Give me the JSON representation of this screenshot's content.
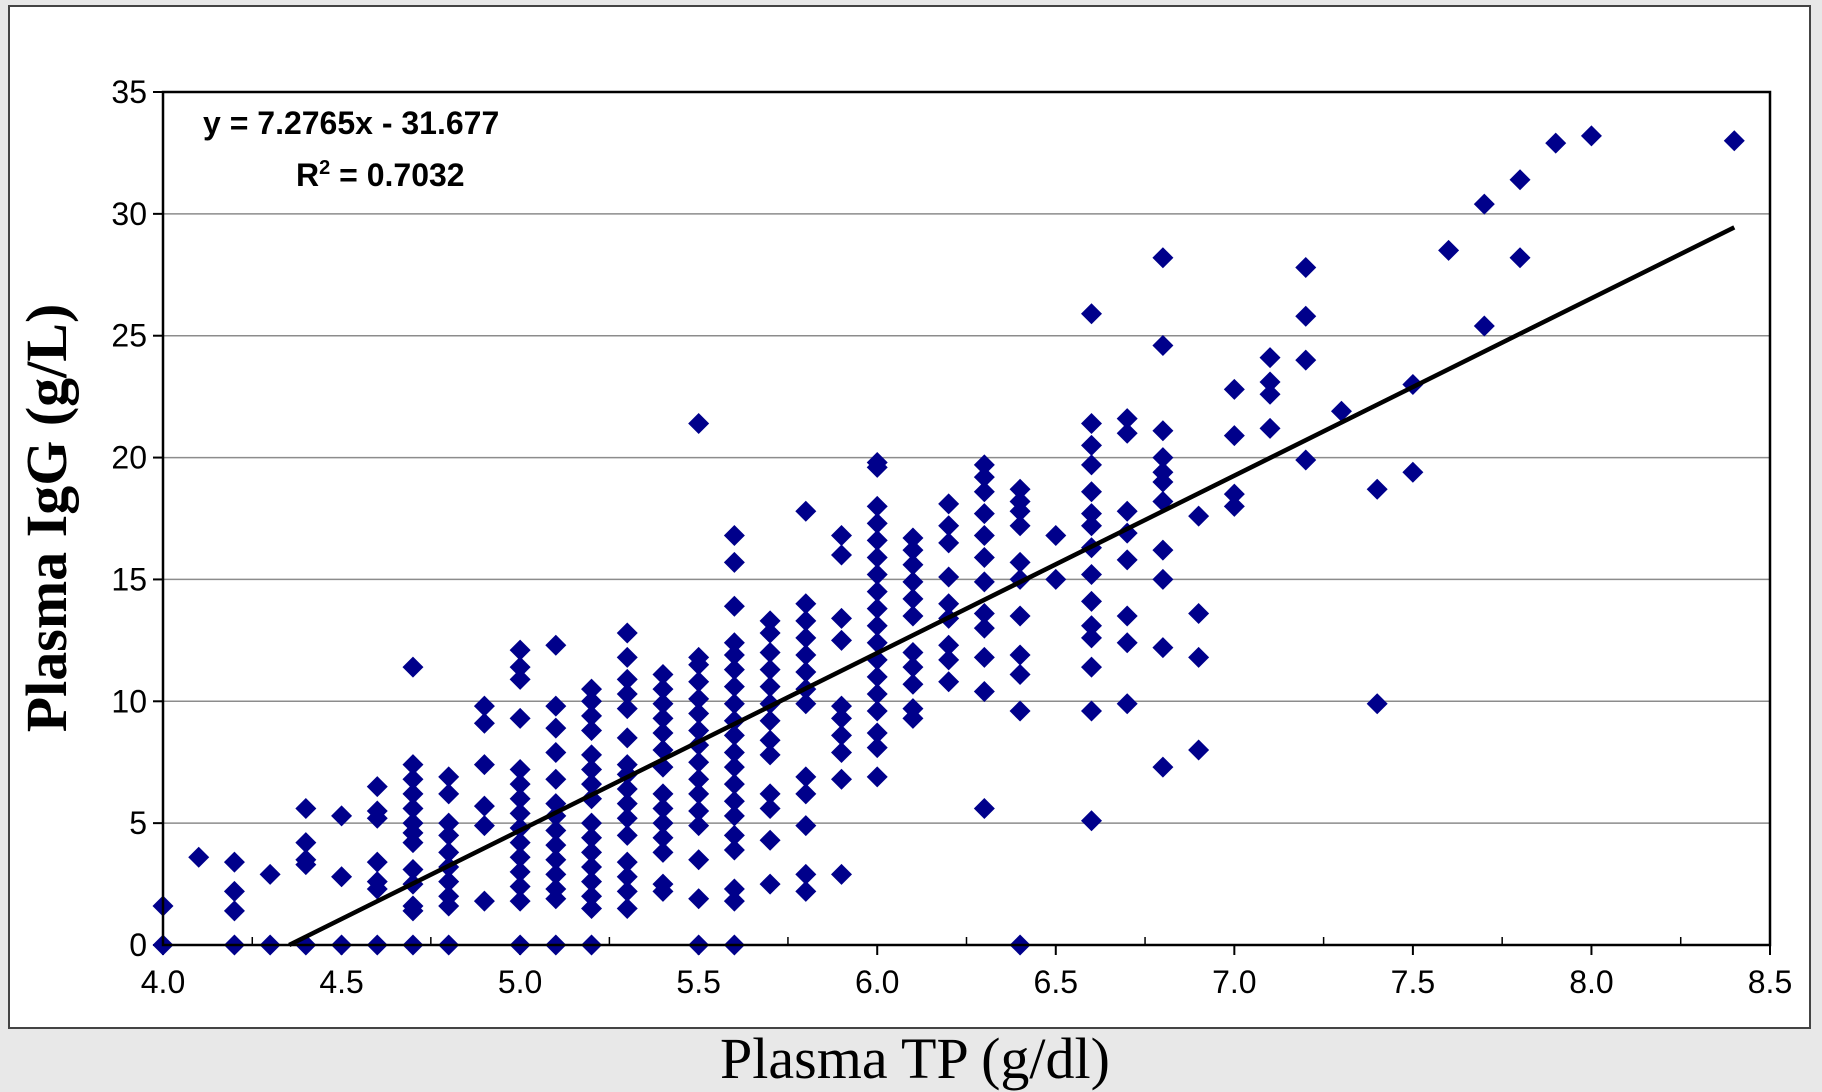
{
  "chart_data": {
    "type": "scatter",
    "xlabel": "Plasma TP (g/dl)",
    "ylabel": "Plasma IgG (g/L)",
    "equation": "y = 7.2765x - 31.677",
    "r_squared": {
      "symbol": "R",
      "superscript": "2",
      "text": " = 0.7032"
    },
    "xlim": [
      4.0,
      8.5
    ],
    "ylim": [
      0,
      35
    ],
    "xticks": [
      {
        "value": 4.0,
        "label": "4.0"
      },
      4.5,
      {
        "value": 5.0,
        "label": "5.0"
      },
      5.5,
      {
        "value": 6.0,
        "label": "6.0"
      },
      6.5,
      {
        "value": 7.0,
        "label": "7.0"
      },
      7.5,
      {
        "value": 8.0,
        "label": "8.0"
      },
      8.5
    ],
    "xminorticks": [
      4.25,
      4.75,
      5.25,
      5.75,
      6.25,
      6.75,
      7.25,
      7.75,
      8.25
    ],
    "yticks": [
      0,
      5,
      10,
      15,
      20,
      25,
      30,
      35
    ],
    "grid": true,
    "series": [
      {
        "color": "#00008b",
        "x": [
          4.0,
          4.0,
          4.1,
          4.2,
          4.2,
          4.2,
          4.2,
          4.3,
          4.3,
          4.4,
          4.4,
          4.4,
          4.4,
          4.4,
          4.5,
          4.5,
          4.5,
          4.6,
          4.6,
          4.6,
          4.6,
          4.6,
          4.6,
          4.6,
          4.7,
          4.7,
          4.7,
          4.7,
          4.7,
          4.7,
          4.7,
          4.7,
          4.7,
          4.7,
          4.7,
          4.7,
          4.7,
          4.8,
          4.8,
          4.8,
          4.8,
          4.8,
          4.8,
          4.8,
          4.8,
          4.8,
          4.8,
          4.9,
          4.9,
          4.9,
          4.9,
          4.9,
          4.9,
          5.0,
          5.0,
          5.0,
          5.0,
          5.0,
          5.0,
          5.0,
          5.0,
          5.0,
          5.0,
          5.0,
          5.0,
          5.0,
          5.0,
          5.0,
          5.1,
          5.1,
          5.1,
          5.1,
          5.1,
          5.1,
          5.1,
          5.1,
          5.1,
          5.1,
          5.1,
          5.1,
          5.1,
          5.1,
          5.2,
          5.2,
          5.2,
          5.2,
          5.2,
          5.2,
          5.2,
          5.2,
          5.2,
          5.2,
          5.2,
          5.2,
          5.2,
          5.2,
          5.2,
          5.2,
          5.3,
          5.3,
          5.3,
          5.3,
          5.3,
          5.3,
          5.3,
          5.3,
          5.3,
          5.3,
          5.3,
          5.3,
          5.3,
          5.3,
          5.3,
          5.3,
          5.4,
          5.4,
          5.4,
          5.4,
          5.4,
          5.4,
          5.4,
          5.4,
          5.4,
          5.4,
          5.4,
          5.4,
          5.4,
          5.4,
          5.5,
          5.5,
          5.5,
          5.5,
          5.5,
          5.5,
          5.5,
          5.5,
          5.5,
          5.5,
          5.5,
          5.5,
          5.5,
          5.5,
          5.5,
          5.5,
          5.6,
          5.6,
          5.6,
          5.6,
          5.6,
          5.6,
          5.6,
          5.6,
          5.6,
          5.6,
          5.6,
          5.6,
          5.6,
          5.6,
          5.6,
          5.6,
          5.6,
          5.6,
          5.6,
          5.6,
          5.7,
          5.7,
          5.7,
          5.7,
          5.7,
          5.7,
          5.7,
          5.7,
          5.7,
          5.7,
          5.7,
          5.7,
          5.7,
          5.8,
          5.8,
          5.8,
          5.8,
          5.8,
          5.8,
          5.8,
          5.8,
          5.8,
          5.8,
          5.8,
          5.8,
          5.8,
          5.9,
          5.9,
          5.9,
          5.9,
          5.9,
          5.9,
          5.9,
          5.9,
          5.9,
          5.9,
          6.0,
          6.0,
          6.0,
          6.0,
          6.0,
          6.0,
          6.0,
          6.0,
          6.0,
          6.0,
          6.0,
          6.0,
          6.0,
          6.0,
          6.0,
          6.0,
          6.0,
          6.0,
          6.1,
          6.1,
          6.1,
          6.1,
          6.1,
          6.1,
          6.1,
          6.1,
          6.1,
          6.1,
          6.1,
          6.2,
          6.2,
          6.2,
          6.2,
          6.2,
          6.2,
          6.2,
          6.2,
          6.2,
          6.3,
          6.3,
          6.3,
          6.3,
          6.3,
          6.3,
          6.3,
          6.3,
          6.3,
          6.3,
          6.3,
          6.3,
          6.4,
          6.4,
          6.4,
          6.4,
          6.4,
          6.4,
          6.4,
          6.4,
          6.4,
          6.4,
          6.4,
          6.5,
          6.5,
          6.6,
          6.6,
          6.6,
          6.6,
          6.6,
          6.6,
          6.6,
          6.6,
          6.6,
          6.6,
          6.6,
          6.6,
          6.6,
          6.6,
          6.6,
          6.7,
          6.7,
          6.7,
          6.7,
          6.7,
          6.7,
          6.7,
          6.7,
          6.8,
          6.8,
          6.8,
          6.8,
          6.8,
          6.8,
          6.8,
          6.8,
          6.8,
          6.8,
          6.8,
          6.9,
          6.9,
          6.9,
          6.9,
          7.0,
          7.0,
          7.0,
          7.0,
          7.1,
          7.1,
          7.1,
          7.1,
          7.2,
          7.2,
          7.2,
          7.2,
          7.3,
          7.4,
          7.4,
          7.5,
          7.5,
          7.6,
          7.7,
          7.7,
          7.8,
          7.8,
          7.9,
          8.0,
          8.4
        ],
        "values": [
          0,
          1.6,
          3.6,
          0,
          1.4,
          2.2,
          3.4,
          0,
          2.9,
          0,
          3.3,
          3.5,
          4.2,
          5.6,
          0,
          2.8,
          5.3,
          0,
          2.3,
          2.6,
          3.4,
          5.2,
          5.5,
          6.5,
          0,
          1.4,
          1.6,
          2.5,
          3.1,
          4.2,
          4.6,
          5.0,
          5.6,
          6.2,
          6.8,
          7.4,
          11.4,
          0,
          1.6,
          2.0,
          2.6,
          3.2,
          3.8,
          4.5,
          5.0,
          6.2,
          6.9,
          1.8,
          4.9,
          5.7,
          7.4,
          9.1,
          9.8,
          0,
          1.8,
          2.4,
          3.0,
          3.6,
          4.2,
          4.8,
          5.4,
          6.0,
          6.6,
          7.2,
          9.3,
          10.9,
          11.4,
          12.1,
          0,
          1.9,
          2.3,
          2.9,
          3.5,
          4.1,
          4.7,
          5.3,
          5.8,
          6.8,
          7.9,
          8.9,
          9.8,
          12.3,
          0,
          1.5,
          2.0,
          2.6,
          3.2,
          3.8,
          4.4,
          5.0,
          6.0,
          6.6,
          7.2,
          7.8,
          8.8,
          9.4,
          10.0,
          10.5,
          1.5,
          2.2,
          2.8,
          3.4,
          4.5,
          5.2,
          5.8,
          6.4,
          7.0,
          7.4,
          8.5,
          9.7,
          10.3,
          10.9,
          11.8,
          12.8,
          2.2,
          2.5,
          3.8,
          4.4,
          5.0,
          5.6,
          6.2,
          7.3,
          8.0,
          8.7,
          9.3,
          9.9,
          10.5,
          11.1,
          0,
          1.9,
          3.5,
          4.9,
          5.5,
          6.2,
          6.8,
          7.5,
          8.2,
          8.8,
          9.5,
          10.1,
          10.8,
          11.5,
          11.8,
          21.4,
          0,
          1.8,
          2.3,
          3.9,
          4.5,
          5.3,
          5.9,
          6.6,
          7.3,
          7.9,
          8.6,
          9.2,
          9.9,
          10.6,
          11.3,
          11.9,
          12.4,
          13.9,
          15.7,
          16.8,
          2.5,
          4.3,
          5.6,
          6.2,
          7.8,
          8.4,
          9.2,
          9.9,
          10.6,
          11.3,
          12.0,
          12.8,
          13.3,
          2.2,
          2.9,
          4.9,
          6.2,
          6.9,
          9.9,
          10.5,
          11.2,
          11.9,
          12.6,
          13.3,
          14.0,
          17.8,
          2.9,
          6.8,
          7.9,
          8.6,
          9.3,
          9.8,
          12.5,
          13.4,
          16.0,
          16.8,
          6.9,
          8.1,
          8.7,
          9.6,
          10.3,
          11.0,
          11.7,
          12.4,
          13.1,
          13.8,
          14.5,
          15.2,
          15.9,
          16.6,
          17.3,
          18.0,
          19.6,
          19.8,
          9.3,
          9.7,
          10.7,
          11.4,
          12.0,
          13.5,
          14.2,
          14.9,
          15.6,
          16.2,
          16.7,
          10.8,
          11.7,
          12.3,
          13.4,
          14.0,
          15.1,
          16.5,
          17.2,
          18.1,
          5.6,
          10.4,
          11.8,
          13.0,
          13.6,
          14.9,
          15.9,
          16.8,
          17.7,
          18.6,
          19.2,
          19.7,
          0,
          9.6,
          11.1,
          11.9,
          13.5,
          15.0,
          15.7,
          17.2,
          17.8,
          18.2,
          18.7,
          15.0,
          16.8,
          5.1,
          9.6,
          11.4,
          12.6,
          13.1,
          14.1,
          15.2,
          16.3,
          17.2,
          17.7,
          18.6,
          19.7,
          20.5,
          21.4,
          25.9,
          9.9,
          12.4,
          13.5,
          15.8,
          16.9,
          17.8,
          21.0,
          21.6,
          7.3,
          12.2,
          15.0,
          16.2,
          18.2,
          19.0,
          19.4,
          20.0,
          21.1,
          24.6,
          28.2,
          8.0,
          11.8,
          13.6,
          17.6,
          18.0,
          18.5,
          20.9,
          22.8,
          21.2,
          22.6,
          23.1,
          24.1,
          19.9,
          24.0,
          25.8,
          27.8,
          21.9,
          9.9,
          18.7,
          19.4,
          23.0,
          28.5,
          25.4,
          30.4,
          28.2,
          31.4,
          32.9,
          33.2,
          33.0
        ]
      }
    ],
    "trendline": {
      "color": "#000000",
      "x": [
        4.3533,
        8.4
      ],
      "values": [
        0,
        29.4456
      ]
    }
  }
}
